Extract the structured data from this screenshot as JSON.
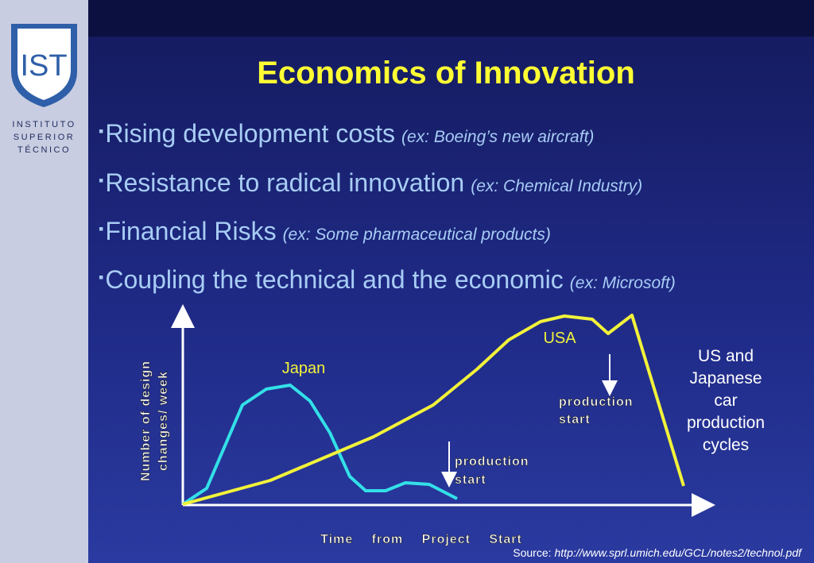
{
  "logo": {
    "lines": [
      "INSTITUTO",
      "SUPERIOR",
      "TÉCNICO"
    ]
  },
  "title": "Economics of Innovation",
  "bullets": [
    {
      "text": "Rising development costs",
      "example": "(ex: Boeing’s new aircraft)"
    },
    {
      "text": "Resistance to radical innovation",
      "example": "(ex: Chemical Industry)"
    },
    {
      "text": "Financial Risks",
      "example": "(ex: Some pharmaceutical products)"
    },
    {
      "text": "Coupling the technical and the economic",
      "example": "(ex: Microsoft)"
    }
  ],
  "chart": {
    "y_label_lines": [
      "Number of design",
      "changes/ week"
    ],
    "x_label": "Time from Project Start",
    "japan": "Japan",
    "usa": "USA",
    "japan_marker": [
      "production",
      "start"
    ],
    "usa_marker": [
      "production",
      "start"
    ],
    "caption_lines": [
      "US and",
      "Japanese",
      "car",
      "production",
      "cycles"
    ]
  },
  "source": {
    "label": "Source:",
    "url": "http://www.sprl.umich.edu/GCL/notes2/technol.pdf"
  }
}
